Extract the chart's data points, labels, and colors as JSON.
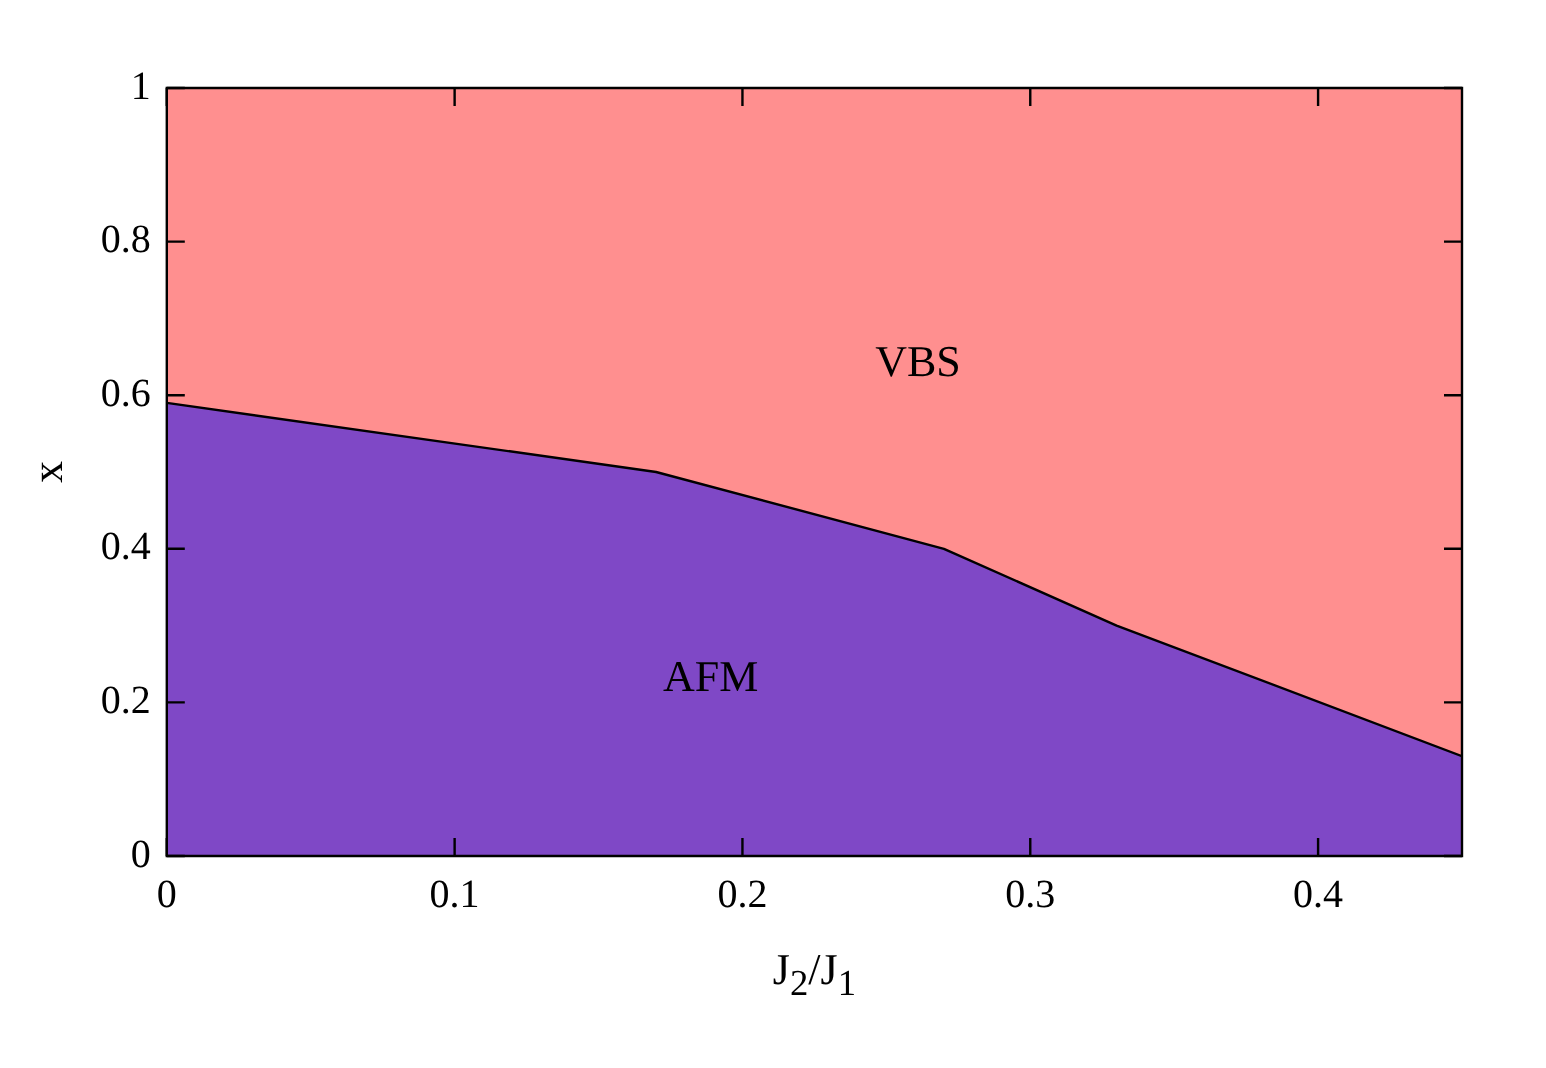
{
  "chart_data": {
    "type": "area",
    "xlabel": "J$_{2}$/J$_{1}$",
    "ylabel": "x",
    "stacked": true,
    "legend": false,
    "x": [
      0,
      0.17,
      0.27,
      0.33,
      0.45
    ],
    "series": [
      {
        "name": "AFM",
        "color": "#7f48c6",
        "values": [
          0.59,
          0.5,
          0.4,
          0.3,
          0.13
        ]
      },
      {
        "name": "VBS",
        "color": "#ff8f8f",
        "values": [
          0.41,
          0.5,
          0.6,
          0.7,
          0.87
        ]
      }
    ],
    "xlim": [
      0,
      0.45
    ],
    "xticks": [
      0,
      0.1,
      0.2,
      0.3,
      0.4
    ],
    "ylim": [
      0,
      1
    ],
    "yticks": [
      0,
      0.2,
      0.4,
      0.6,
      0.8,
      1
    ]
  }
}
